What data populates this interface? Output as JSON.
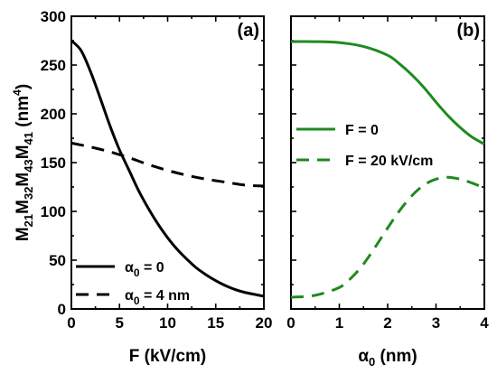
{
  "figure": {
    "background": "#ffffff",
    "text_color": "#000000"
  },
  "chart_data": [
    {
      "type": "line",
      "panel_label": "(a)",
      "xlabel": "F (kV/cm)",
      "ylabel": "M21M32M43M41 (nm⁴)",
      "ylabel_parts": [
        {
          "t": "M",
          "sub": "21"
        },
        {
          "t": "M",
          "sub": "32"
        },
        {
          "t": "M",
          "sub": "43"
        },
        {
          "t": "M",
          "sub": "41"
        },
        {
          "t": " (nm",
          "sup": "4"
        },
        {
          "t": ")"
        }
      ],
      "xlim": [
        0,
        20
      ],
      "ylim": [
        0,
        300
      ],
      "xticks": [
        0,
        5,
        10,
        15,
        20
      ],
      "yticks": [
        0,
        50,
        100,
        150,
        200,
        250,
        300
      ],
      "legend_position": "bottom-left",
      "grid": false,
      "series": [
        {
          "name": "α0 = 0",
          "name_parts": {
            "base": "α",
            "sub": "0",
            "rest": " = 0"
          },
          "color": "#000000",
          "style": "solid",
          "x": [
            0,
            1,
            2,
            3,
            4,
            5,
            6,
            7,
            8,
            9,
            10,
            11,
            12,
            13,
            14,
            15,
            16,
            17,
            18,
            19,
            20
          ],
          "y": [
            275,
            265,
            243,
            216,
            188,
            163,
            142,
            121,
            103,
            87,
            73,
            61,
            51,
            42,
            35,
            29,
            24,
            20,
            17,
            15,
            13
          ]
        },
        {
          "name": "α0 = 4 nm",
          "name_parts": {
            "base": "α",
            "sub": "0",
            "rest": " = 4 nm"
          },
          "color": "#000000",
          "style": "dashed",
          "x": [
            0,
            2,
            4,
            6,
            8,
            10,
            12,
            14,
            16,
            18,
            20
          ],
          "y": [
            170,
            166,
            161,
            155,
            148,
            142,
            137,
            133,
            130,
            127,
            126
          ]
        }
      ]
    },
    {
      "type": "line",
      "panel_label": "(b)",
      "xlabel": "α0 (nm)",
      "xlabel_parts": {
        "base": "α",
        "sub": "0",
        "rest": " (nm)"
      },
      "xlim": [
        0,
        4
      ],
      "ylim": [
        0,
        300
      ],
      "xticks": [
        0,
        1,
        2,
        3,
        4
      ],
      "legend_position": "middle-left",
      "grid": false,
      "series": [
        {
          "name": "F = 0",
          "color": "#1f8a1f",
          "style": "solid",
          "x": [
            0,
            0.5,
            1.0,
            1.5,
            2.0,
            2.25,
            2.5,
            2.75,
            3.0,
            3.25,
            3.5,
            3.75,
            4.0
          ],
          "y": [
            274,
            274,
            273,
            269,
            260,
            251,
            240,
            227,
            212,
            198,
            186,
            176,
            169
          ]
        },
        {
          "name": "F = 20 kV/cm",
          "color": "#1f8a1f",
          "style": "dashed",
          "x": [
            0,
            0.5,
            1.0,
            1.25,
            1.5,
            1.75,
            2.0,
            2.25,
            2.5,
            2.75,
            3.0,
            3.25,
            3.5,
            3.75,
            4.0
          ],
          "y": [
            12,
            14,
            22,
            32,
            46,
            64,
            83,
            101,
            116,
            127,
            133,
            135,
            133,
            129,
            124
          ]
        }
      ]
    }
  ]
}
